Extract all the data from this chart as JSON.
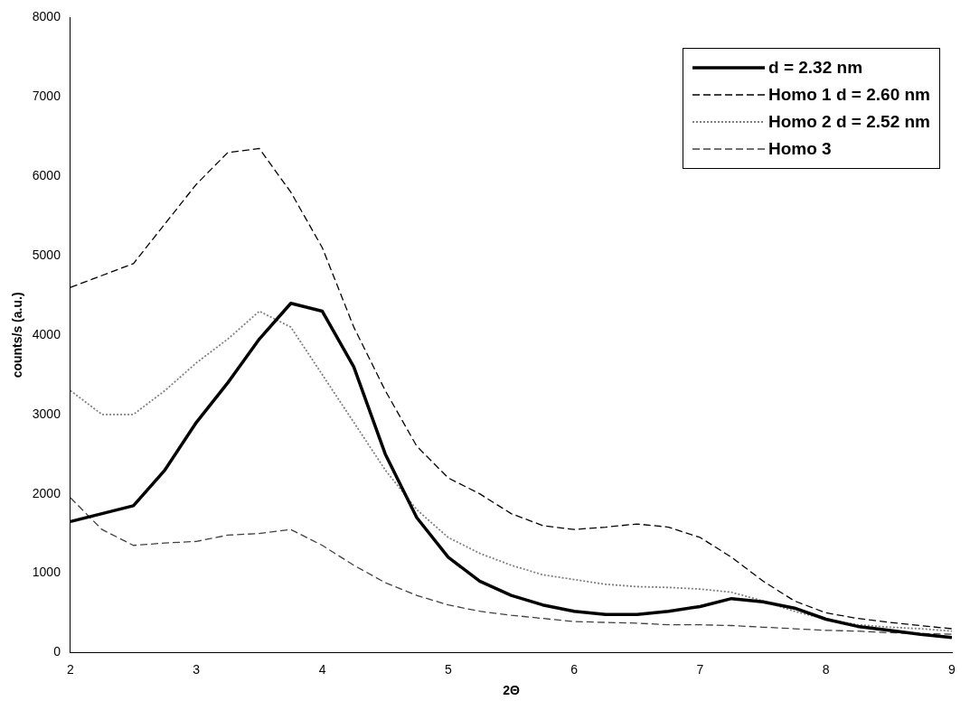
{
  "chart_data": {
    "type": "line",
    "xlabel": "2Θ",
    "ylabel": "counts/s (a.u.)",
    "xlim": [
      2,
      9
    ],
    "xticks": [
      2,
      3,
      4,
      5,
      6,
      7,
      8,
      9
    ],
    "ylim": [
      0,
      8000
    ],
    "yticks": [
      0,
      1000,
      2000,
      3000,
      4000,
      5000,
      6000,
      7000,
      8000
    ],
    "grid": false,
    "legend": "top right",
    "marker": "none",
    "x": [
      2,
      2.25,
      2.5,
      2.75,
      3,
      3.25,
      3.5,
      3.75,
      4,
      4.25,
      4.5,
      4.75,
      5,
      5.25,
      5.5,
      5.75,
      6,
      6.25,
      6.5,
      6.75,
      7,
      7.25,
      7.5,
      7.75,
      8,
      8.25,
      8.5,
      8.75,
      9
    ],
    "series": [
      {
        "name": "d = 2.32 nm",
        "color": "#000000",
        "line_style": "solid",
        "values": [
          1650,
          1750,
          1850,
          2300,
          2900,
          3400,
          3950,
          4400,
          4300,
          3600,
          2500,
          1700,
          1200,
          900,
          720,
          600,
          520,
          480,
          480,
          520,
          580,
          680,
          640,
          560,
          420,
          330,
          280,
          230,
          190
        ]
      },
      {
        "name": "Homo 1 d = 2.60 nm",
        "color": "#000000",
        "line_style": "dashed",
        "values": [
          4600,
          4750,
          4900,
          5400,
          5900,
          6300,
          6350,
          5800,
          5100,
          4100,
          3300,
          2600,
          2200,
          2000,
          1750,
          1600,
          1550,
          1580,
          1620,
          1580,
          1450,
          1200,
          900,
          650,
          500,
          430,
          380,
          340,
          300
        ]
      },
      {
        "name": "Homo 2 d = 2.52 nm",
        "color": "#808080",
        "line_style": "dotted",
        "values": [
          3300,
          3000,
          3000,
          3300,
          3650,
          3950,
          4300,
          4100,
          3500,
          2900,
          2300,
          1800,
          1450,
          1250,
          1100,
          980,
          920,
          860,
          830,
          820,
          800,
          760,
          650,
          520,
          420,
          350,
          320,
          300,
          270
        ]
      },
      {
        "name": "Homo 3",
        "color": "#404040",
        "line_style": "dashed",
        "values": [
          1950,
          1550,
          1350,
          1380,
          1400,
          1480,
          1500,
          1550,
          1350,
          1100,
          880,
          720,
          600,
          520,
          470,
          430,
          390,
          380,
          370,
          350,
          350,
          340,
          320,
          300,
          280,
          270,
          250,
          240,
          230
        ]
      }
    ]
  }
}
